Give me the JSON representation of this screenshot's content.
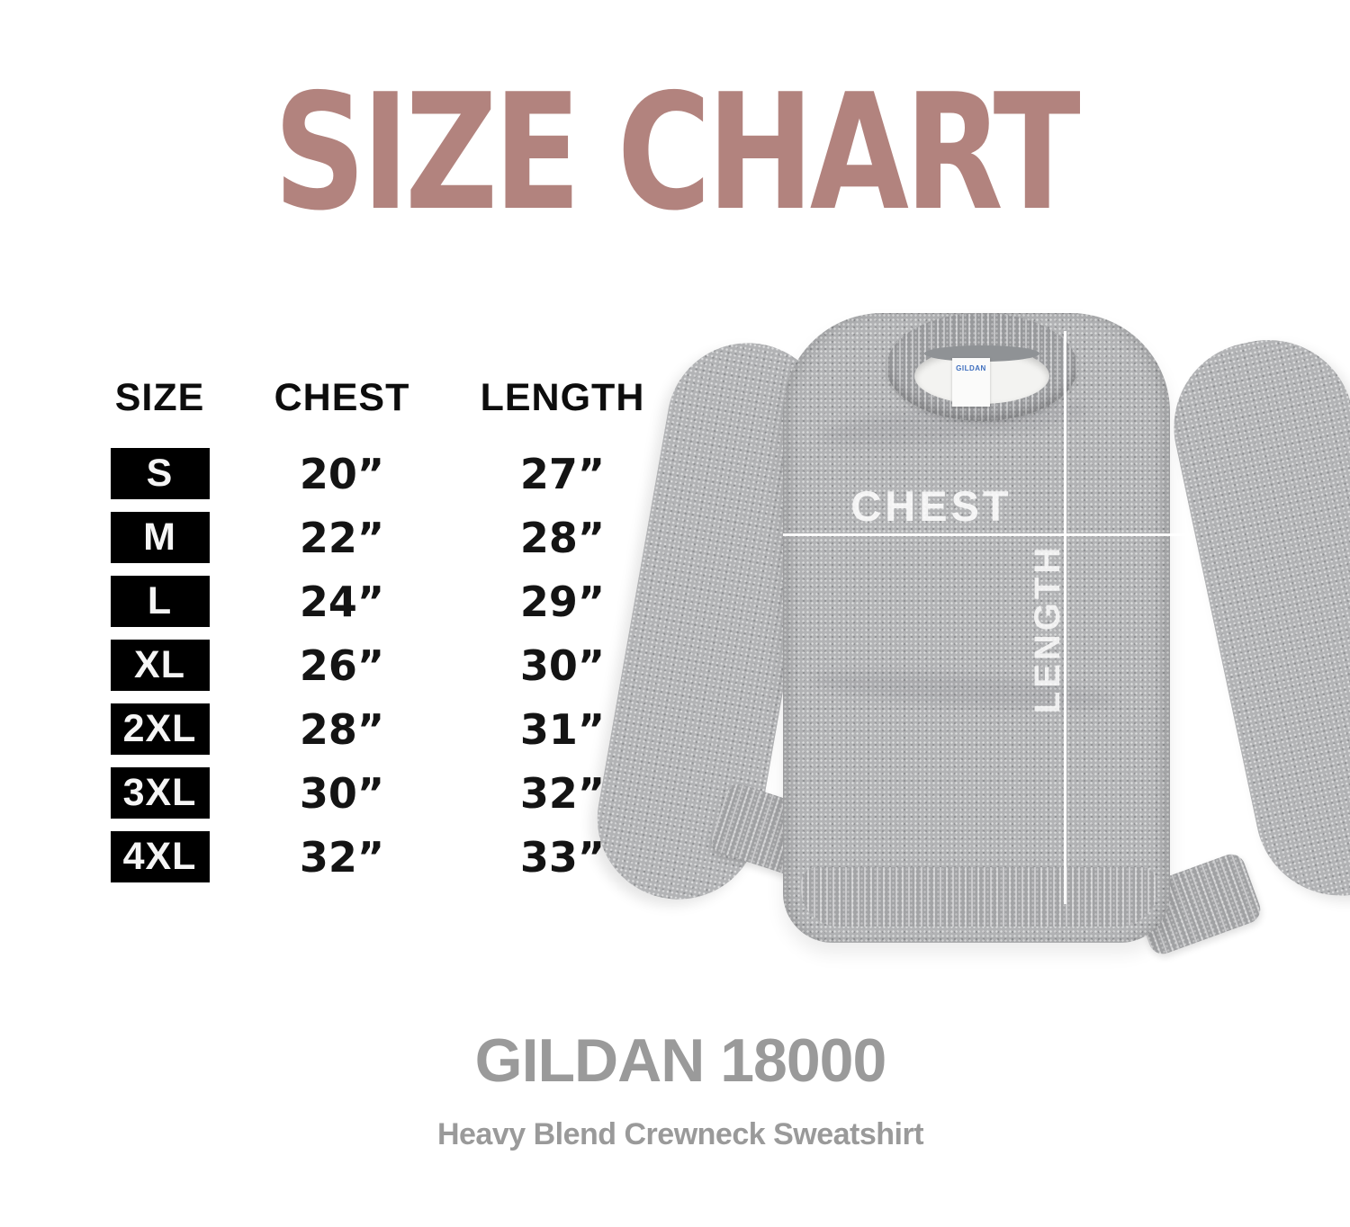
{
  "title": {
    "text": "SIZE CHART",
    "color": "#b2837e"
  },
  "table": {
    "headers": {
      "size": "SIZE",
      "chest": "CHEST",
      "length": "LENGTH"
    },
    "rows": [
      {
        "size": "S",
        "chest": "20”",
        "length": "27”"
      },
      {
        "size": "M",
        "chest": "22”",
        "length": "28”"
      },
      {
        "size": "L",
        "chest": "24”",
        "length": "29”"
      },
      {
        "size": "XL",
        "chest": "26”",
        "length": "30”"
      },
      {
        "size": "2XL",
        "chest": "28”",
        "length": "31”"
      },
      {
        "size": "3XL",
        "chest": "30”",
        "length": "32”"
      },
      {
        "size": "4XL",
        "chest": "32”",
        "length": "33”"
      }
    ],
    "badge_bg": "#000000",
    "badge_text_color": "#ffffff"
  },
  "photo": {
    "chest_label": "CHEST",
    "length_label": "LENGTH",
    "tag_brand": "GILDAN",
    "fabric_color": "#b2b3b5",
    "measure_line_color": "#ffffff"
  },
  "footer": {
    "model": "GILDAN 18000",
    "subtitle": "Heavy Blend Crewneck Sweatshirt",
    "text_color": "#9a9a9a"
  },
  "chart_data": {
    "type": "table",
    "title": "SIZE CHART",
    "columns": [
      "SIZE",
      "CHEST",
      "LENGTH"
    ],
    "rows": [
      [
        "S",
        "20”",
        "27”"
      ],
      [
        "M",
        "22”",
        "28”"
      ],
      [
        "L",
        "24”",
        "29”"
      ],
      [
        "XL",
        "26”",
        "30”"
      ],
      [
        "2XL",
        "28”",
        "31”"
      ],
      [
        "3XL",
        "30”",
        "32”"
      ],
      [
        "4XL",
        "32”",
        "33”"
      ]
    ],
    "units": "inches",
    "product": "GILDAN 18000 Heavy Blend Crewneck Sweatshirt"
  }
}
